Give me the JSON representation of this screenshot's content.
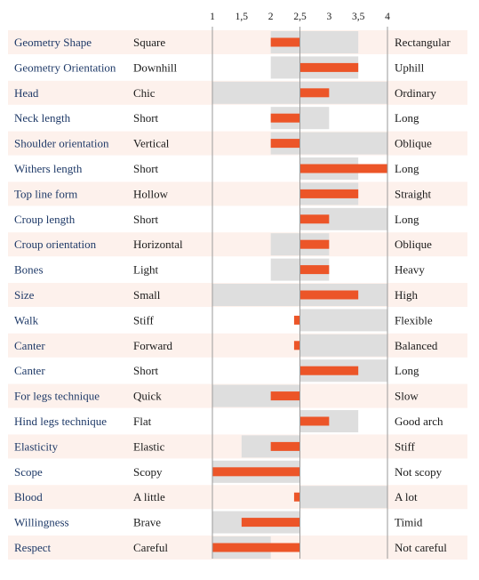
{
  "colors": {
    "row_band": "#fdf1ec",
    "range_fill": "#dedede",
    "bar": "#ec5528",
    "axis_line": "#9a9a9a",
    "label_blue": "#1f3a68"
  },
  "chart_data": {
    "type": "bar",
    "orientation": "horizontal",
    "baseline": 2.5,
    "xlim": [
      1,
      4
    ],
    "x_ticks": [
      "1",
      "1,5",
      "2",
      "2,5",
      "3",
      "3,5",
      "4"
    ],
    "x_tick_values": [
      1,
      1.5,
      2,
      2.5,
      3,
      3.5,
      4
    ],
    "reference_lines": [
      1,
      2.5,
      4
    ],
    "grid": false,
    "legend": "none",
    "columns": [
      "trait",
      "low_label",
      "high_label"
    ],
    "rows": [
      {
        "trait": "Geometry Shape",
        "low": "Square",
        "high": "Rectangular",
        "value": 2.0,
        "range": [
          2.0,
          3.5
        ]
      },
      {
        "trait": "Geometry Orientation",
        "low": "Downhill",
        "high": "Uphill",
        "value": 3.5,
        "range": [
          2.0,
          3.5
        ]
      },
      {
        "trait": "Head",
        "low": "Chic",
        "high": "Ordinary",
        "value": 3.0,
        "range": [
          1.0,
          4.0
        ]
      },
      {
        "trait": "Neck length",
        "low": "Short",
        "high": "Long",
        "value": 2.0,
        "range": [
          2.0,
          3.0
        ]
      },
      {
        "trait": "Shoulder orientation",
        "low": "Vertical",
        "high": "Oblique",
        "value": 2.0,
        "range": [
          2.0,
          4.0
        ]
      },
      {
        "trait": "Withers length",
        "low": "Short",
        "high": "Long",
        "value": 4.0,
        "range": [
          2.5,
          3.5
        ]
      },
      {
        "trait": "Top line form",
        "low": "Hollow",
        "high": "Straight",
        "value": 3.5,
        "range": [
          2.5,
          3.5
        ]
      },
      {
        "trait": "Croup length",
        "low": "Short",
        "high": "Long",
        "value": 3.0,
        "range": [
          2.5,
          4.0
        ]
      },
      {
        "trait": "Croup orientation",
        "low": "Horizontal",
        "high": "Oblique",
        "value": 3.0,
        "range": [
          2.0,
          3.0
        ]
      },
      {
        "trait": "Bones",
        "low": "Light",
        "high": "Heavy",
        "value": 3.0,
        "range": [
          2.0,
          3.0
        ]
      },
      {
        "trait": "Size",
        "low": "Small",
        "high": "High",
        "value": 3.5,
        "range": [
          1.0,
          4.0
        ]
      },
      {
        "trait": "Walk",
        "low": "Stiff",
        "high": "Flexible",
        "value": 2.4,
        "range": [
          2.5,
          4.0
        ]
      },
      {
        "trait": "Canter",
        "low": "Forward",
        "high": "Balanced",
        "value": 2.4,
        "range": [
          2.5,
          4.0
        ]
      },
      {
        "trait": "Canter",
        "low": "Short",
        "high": "Long",
        "value": 3.5,
        "range": [
          2.5,
          4.0
        ]
      },
      {
        "trait": "For legs technique",
        "low": "Quick",
        "high": "Slow",
        "value": 2.0,
        "range": [
          1.0,
          2.5
        ]
      },
      {
        "trait": "Hind legs technique",
        "low": "Flat",
        "high": "Good arch",
        "value": 3.0,
        "range": [
          2.5,
          3.5
        ]
      },
      {
        "trait": "Elasticity",
        "low": "Elastic",
        "high": "Stiff",
        "value": 2.0,
        "range": [
          1.5,
          2.5
        ]
      },
      {
        "trait": "Scope",
        "low": "Scopy",
        "high": "Not scopy",
        "value": 1.0,
        "range": [
          1.0,
          2.5
        ]
      },
      {
        "trait": "Blood",
        "low": "A little",
        "high": "A lot",
        "value": 2.4,
        "range": [
          2.5,
          4.0
        ]
      },
      {
        "trait": "Willingness",
        "low": "Brave",
        "high": "Timid",
        "value": 1.5,
        "range": [
          1.0,
          2.5
        ]
      },
      {
        "trait": "Respect",
        "low": "Careful",
        "high": "Not careful",
        "value": 1.0,
        "range": [
          1.0,
          2.0
        ]
      }
    ]
  }
}
